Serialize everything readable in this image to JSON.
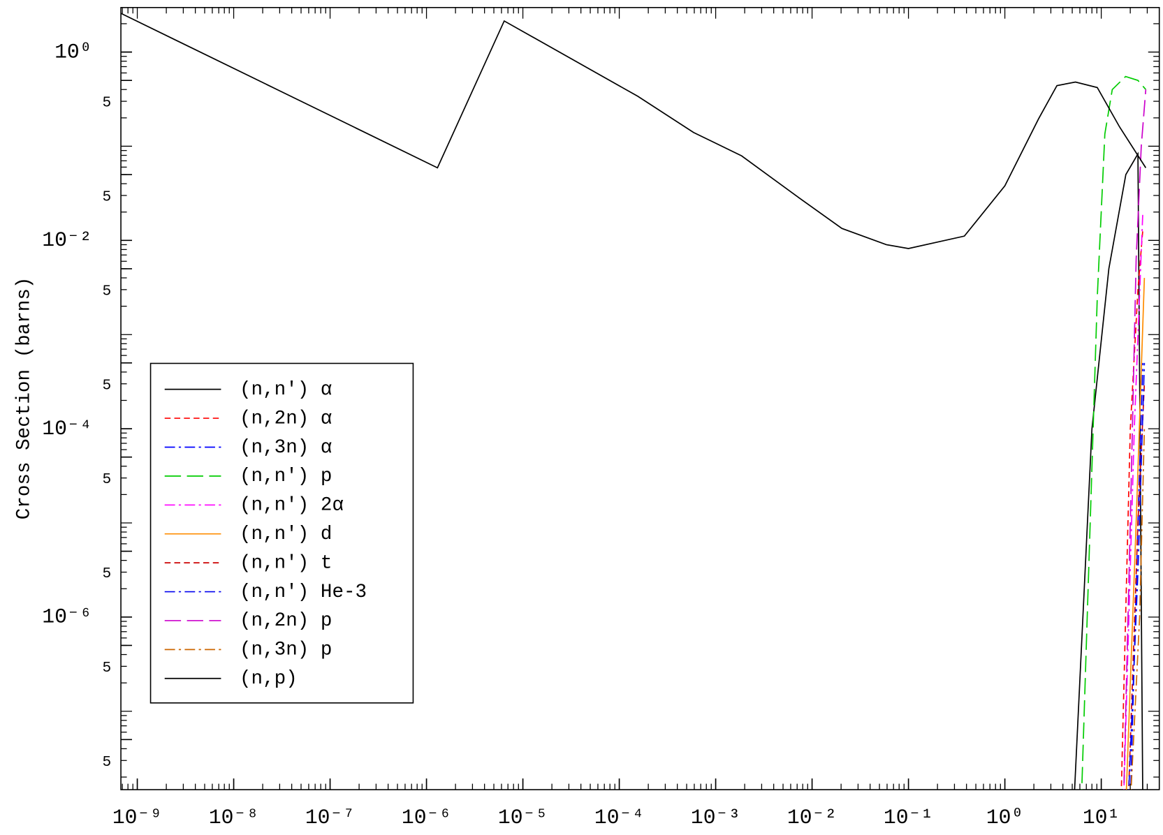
{
  "chart_data": {
    "type": "line",
    "y_label": "Cross Section (barns)",
    "xscale": "log",
    "yscale": "log",
    "xlim": [
      6.76e-10,
      40
    ],
    "ylim": [
      1.47e-08,
      2.97
    ],
    "xticks": [
      {
        "value": 1e-09,
        "label": "10⁻⁹"
      },
      {
        "value": 1e-08,
        "label": "10⁻⁸"
      },
      {
        "value": 1e-07,
        "label": "10⁻⁷"
      },
      {
        "value": 1e-06,
        "label": "10⁻⁶"
      },
      {
        "value": 1e-05,
        "label": "10⁻⁵"
      },
      {
        "value": 0.0001,
        "label": "10⁻⁴"
      },
      {
        "value": 0.001,
        "label": "10⁻³"
      },
      {
        "value": 0.01,
        "label": "10⁻²"
      },
      {
        "value": 0.1,
        "label": "10⁻¹"
      },
      {
        "value": 1,
        "label": "10⁰"
      },
      {
        "value": 10,
        "label": "10¹"
      }
    ],
    "yticks": [
      {
        "value": 1,
        "label": "10⁰"
      },
      {
        "value": 0.5,
        "label": "5"
      },
      {
        "value": 0.05,
        "label": "5"
      },
      {
        "value": 0.01,
        "label": "10⁻²"
      },
      {
        "value": 0.005,
        "label": "5"
      },
      {
        "value": 0.0005,
        "label": "5"
      },
      {
        "value": 0.0001,
        "label": "10⁻⁴"
      },
      {
        "value": 5e-05,
        "label": "5"
      },
      {
        "value": 5e-06,
        "label": "5"
      },
      {
        "value": 1e-06,
        "label": "10⁻⁶"
      },
      {
        "value": 5e-07,
        "label": "5"
      },
      {
        "value": 5e-08,
        "label": "5"
      }
    ],
    "legend": "lower-left",
    "series": [
      {
        "name": "(n,n') α",
        "color": "#000000",
        "dash": "solid",
        "x": [
          5.2,
          8,
          12,
          18,
          24,
          27
        ],
        "values": [
          1e-08,
          0.0001,
          0.005,
          0.05,
          0.083,
          1e-08
        ]
      },
      {
        "name": "(n,2n) α",
        "color": "#ff0000",
        "dash": "dashed",
        "x": [
          16,
          20,
          24,
          27
        ],
        "values": [
          1e-08,
          0.0001,
          0.003,
          0.013
        ]
      },
      {
        "name": "(n,3n) α",
        "color": "#0000ff",
        "dash": "dash-dot",
        "x": [
          20,
          24,
          27
        ],
        "values": [
          1e-08,
          1e-05,
          0.0005
        ]
      },
      {
        "name": "(n,n') p",
        "color": "#00cc00",
        "dash": "long-dash",
        "x": [
          6.2,
          7.7,
          9.1,
          10.9,
          13,
          17.9,
          24,
          29
        ],
        "values": [
          1e-08,
          1.1e-05,
          0.0025,
          0.135,
          0.4,
          0.55,
          0.5,
          0.4
        ]
      },
      {
        "name": "(n,n') 2α",
        "color": "#ff00ff",
        "dash": "dash-dot",
        "x": [
          17,
          22,
          27
        ],
        "values": [
          1e-08,
          0.0001,
          0.02
        ]
      },
      {
        "name": "(n,n') d",
        "color": "#ff8c00",
        "dash": "solid",
        "x": [
          18,
          23,
          28
        ],
        "values": [
          1e-08,
          1e-05,
          0.004
        ]
      },
      {
        "name": "(n,n') t",
        "color": "#cc0000",
        "dash": "dashed",
        "x": [
          19,
          24,
          28
        ],
        "values": [
          1e-08,
          1e-05,
          0.0003
        ]
      },
      {
        "name": "(n,n') He-3",
        "color": "#0000ee",
        "dash": "dash-dot",
        "x": [
          19,
          24,
          28
        ],
        "values": [
          1e-08,
          3e-06,
          0.0005
        ]
      },
      {
        "name": "(n,2n) p",
        "color": "#cc00cc",
        "dash": "long-dash",
        "x": [
          17,
          20,
          23,
          26,
          29
        ],
        "values": [
          1e-08,
          1e-05,
          0.0063,
          0.1,
          0.4
        ]
      },
      {
        "name": "(n,3n) p",
        "color": "#cc6600",
        "dash": "dash-dot",
        "x": [
          20,
          25,
          28
        ],
        "values": [
          1e-08,
          1e-06,
          0.0001
        ]
      },
      {
        "name": "(n,p)",
        "color": "#000000",
        "dash": "solid",
        "x": [
          6.8e-10,
          1.3e-06,
          6.4e-06,
          0.000155,
          0.00059,
          0.00186,
          0.0071,
          0.0204,
          0.059,
          0.1,
          0.38,
          1,
          2.24,
          3.47,
          5.4,
          9.1,
          15.5,
          29
        ],
        "values": [
          2.57,
          0.059,
          2.14,
          0.34,
          0.14,
          0.079,
          0.029,
          0.0134,
          0.009,
          0.0082,
          0.0111,
          0.038,
          0.196,
          0.44,
          0.48,
          0.42,
          0.16,
          0.059
        ]
      }
    ]
  }
}
